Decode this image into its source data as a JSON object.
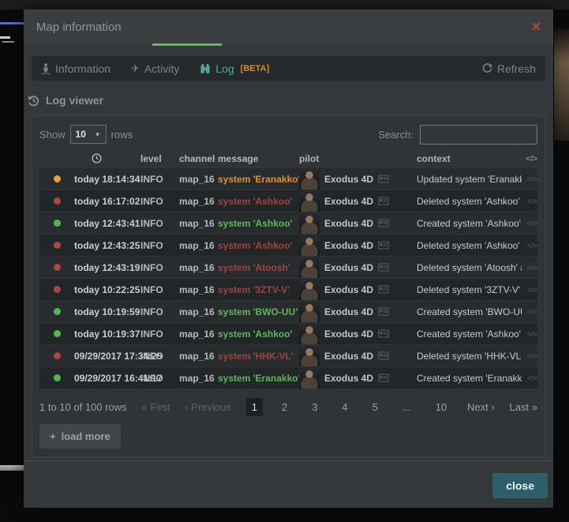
{
  "colors": {
    "accent_green": "#5fbb5e",
    "tab_active_teal": "#4fa8a0",
    "beta_orange": "#df8d12",
    "status_orange": "#e2a23b",
    "status_red": "#ab4642",
    "status_green": "#57b556",
    "close_button_teal": "#2e5f68",
    "close_x_red": "#c13f3c"
  },
  "icons": {
    "close": "×",
    "caret_down": "▼",
    "plane": "✈",
    "plus": "+"
  },
  "modal": {
    "title": "Map information"
  },
  "tabs": {
    "items": [
      {
        "label": "Information"
      },
      {
        "label": "Activity"
      },
      {
        "label": "Log",
        "beta": "[BETA]"
      }
    ],
    "refresh_label": "Refresh"
  },
  "log_viewer": {
    "heading": "Log viewer",
    "show_label": "Show",
    "page_size": "10",
    "rows_label": "rows",
    "search_label": "Search:",
    "search_value": ""
  },
  "table": {
    "headers": {
      "level": "level",
      "channel": "channel",
      "message": "message",
      "pilot": "pilot",
      "context": "context"
    },
    "code_icon": "</>",
    "rows": [
      {
        "status": "orange",
        "time": "today 18:14:34",
        "level": "INFO",
        "channel": "map_16",
        "message": "system 'Eranakko'",
        "pilot": "Exodus 4D",
        "context": "Updated system 'Eranakk..."
      },
      {
        "status": "red",
        "time": "today 16:17:02",
        "level": "INFO",
        "channel": "map_16",
        "message": "system 'Ashkoo'",
        "pilot": "Exodus 4D",
        "context": "Deleted system 'Ashkoo' ..."
      },
      {
        "status": "green",
        "time": "today 12:43:41",
        "level": "INFO",
        "channel": "map_16",
        "message": "system 'Ashkoo'",
        "pilot": "Exodus 4D",
        "context": "Created system 'Ashkoo' ..."
      },
      {
        "status": "red",
        "time": "today 12:43:25",
        "level": "INFO",
        "channel": "map_16",
        "message": "system 'Ashkoo'",
        "pilot": "Exodus 4D",
        "context": "Deleted system 'Ashkoo' ..."
      },
      {
        "status": "red",
        "time": "today 12:43:19",
        "level": "INFO",
        "channel": "map_16",
        "message": "system 'Atoosh'",
        "pilot": "Exodus 4D",
        "context": "Deleted system 'Atoosh' #..."
      },
      {
        "status": "red",
        "time": "today 10:22:25",
        "level": "INFO",
        "channel": "map_16",
        "message": "system '3ZTV-V'",
        "pilot": "Exodus 4D",
        "context": "Deleted system '3ZTV-V' #..."
      },
      {
        "status": "green",
        "time": "today 10:19:59",
        "level": "INFO",
        "channel": "map_16",
        "message": "system 'BWO-UU'",
        "pilot": "Exodus 4D",
        "context": "Created system 'BWO-UU'..."
      },
      {
        "status": "green",
        "time": "today 10:19:37",
        "level": "INFO",
        "channel": "map_16",
        "message": "system 'Ashkoo'",
        "pilot": "Exodus 4D",
        "context": "Created system 'Ashkoo' ..."
      },
      {
        "status": "red",
        "time": "09/29/2017 17:34:25",
        "level": "INFO",
        "channel": "map_16",
        "message": "system 'HHK-VL'",
        "pilot": "Exodus 4D",
        "context": "Deleted system 'HHK-VL' ..."
      },
      {
        "status": "green",
        "time": "09/29/2017 16:41:17",
        "level": "INFO",
        "channel": "map_16",
        "message": "system 'Eranakko'",
        "pilot": "Exodus 4D",
        "context": "Created system 'Eranakko..."
      }
    ]
  },
  "pagination": {
    "summary": "1 to 10 of 100 rows",
    "first_label": "« First",
    "previous_label": "‹ Previous",
    "pages": [
      "1",
      "2",
      "3",
      "4",
      "5",
      "...",
      "10"
    ],
    "active_page": "1",
    "next_label": "Next ›",
    "last_label": "Last »"
  },
  "load_more": {
    "label": "load more"
  },
  "footer": {
    "close_label": "close"
  }
}
